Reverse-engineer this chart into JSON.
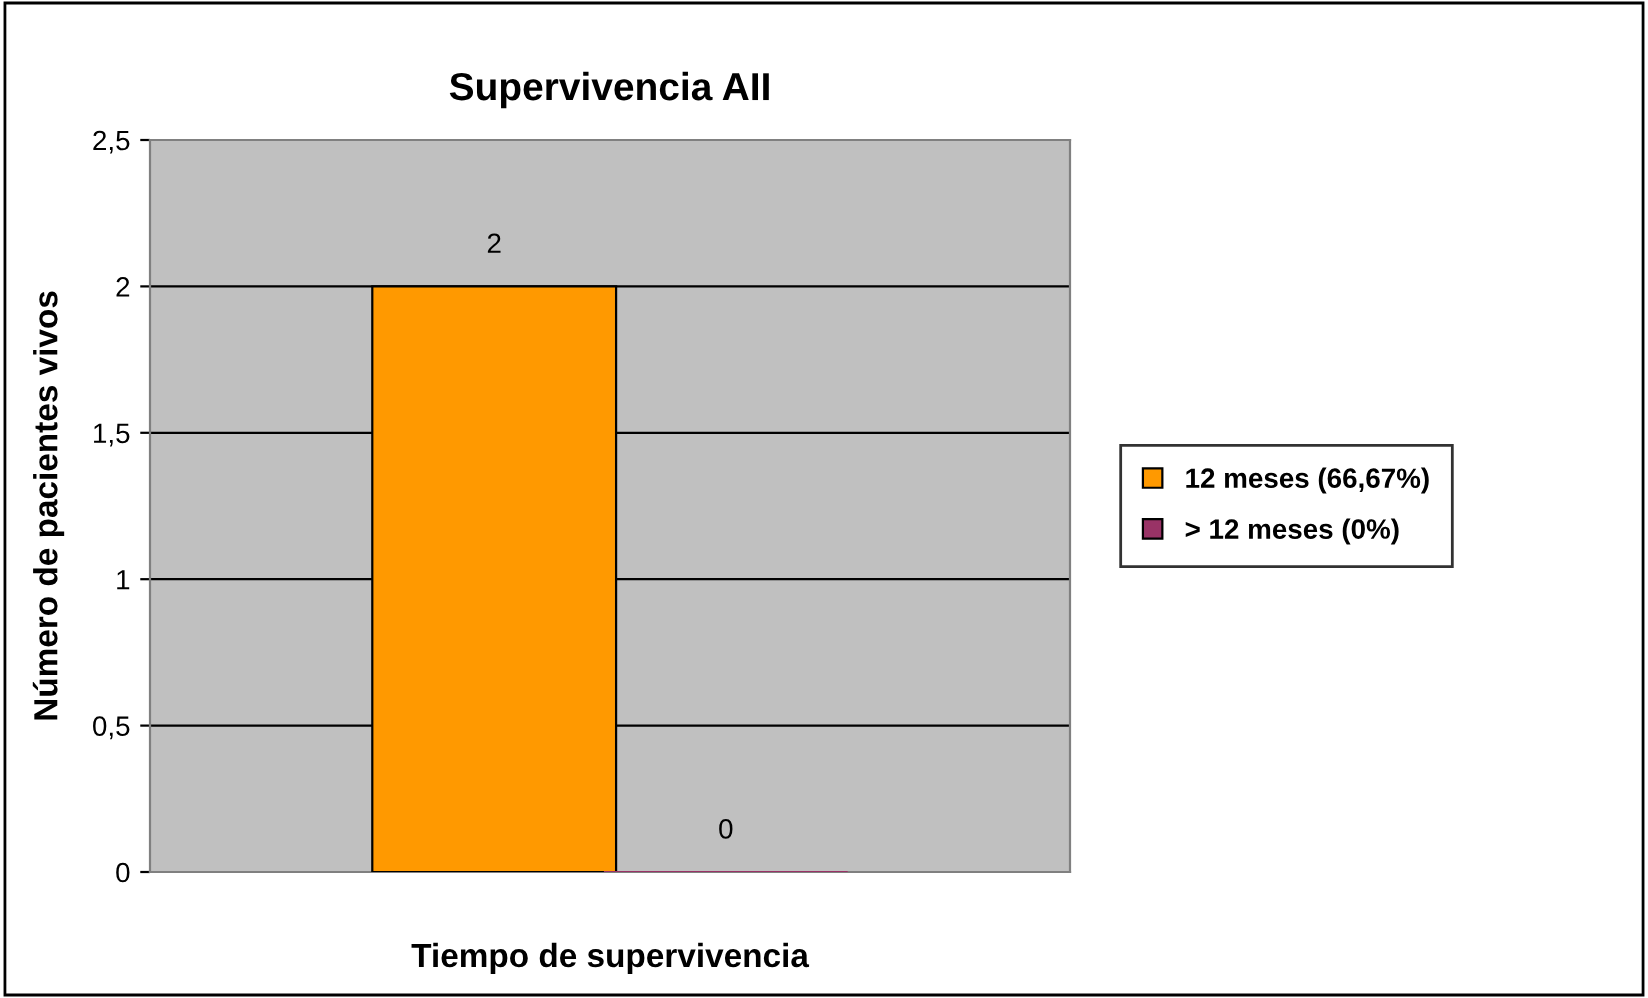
{
  "chart_data": {
    "type": "bar",
    "title": "Supervivencia AII",
    "xlabel": "Tiempo de supervivencia",
    "ylabel": "Número de pacientes vivos",
    "categories": [
      null
    ],
    "series": [
      {
        "name": "12 meses (66,67%)",
        "color": "#ff9900",
        "values": [
          2
        ]
      },
      {
        "name": "> 12 meses (0%)",
        "color": "#993366",
        "values": [
          0
        ]
      }
    ],
    "ylim": [
      0,
      2.5
    ],
    "yticks": [
      0,
      {
        "value": 0.5,
        "label": "0,5"
      },
      1,
      {
        "value": 1.5,
        "label": "1,5"
      },
      2,
      {
        "value": 2.5,
        "label": "2,5"
      }
    ],
    "grid": "y",
    "legend": "right",
    "data_labels": true
  }
}
